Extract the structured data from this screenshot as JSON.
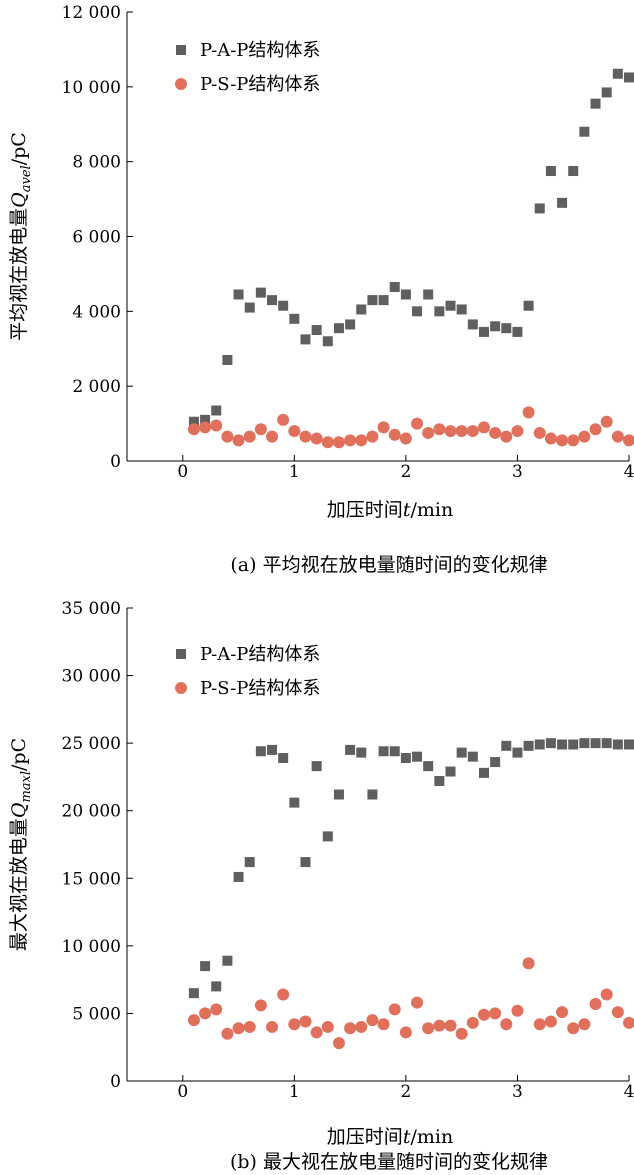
{
  "chart_data": [
    {
      "type": "scatter",
      "title": "(a) 平均视在放电量随时间的变化规律",
      "xlabel_prefix": "加压时间",
      "xlabel_var": "t",
      "xlabel_suffix": "/min",
      "ylabel_prefix": "平均视在放电量",
      "ylabel_var": "Q",
      "ylabel_sub": "avel",
      "ylabel_suffix": "/pC",
      "xlim": [
        -0.5,
        4
      ],
      "ylim": [
        0,
        12000
      ],
      "xticks": [
        0,
        1,
        2,
        3,
        4
      ],
      "xtick_labels": [
        "0",
        "1",
        "2",
        "3",
        "4"
      ],
      "yticks": [
        0,
        2000,
        4000,
        6000,
        8000,
        10000,
        12000
      ],
      "ytick_labels": [
        "0",
        "2 000",
        "4 000",
        "6 000",
        "8 000",
        "10 000",
        "12 000"
      ],
      "legend_position": "top-left",
      "series": [
        {
          "name": "P-A-P结构体系",
          "marker": "square",
          "color": "#5f5f5f",
          "x": [
            0.1,
            0.2,
            0.3,
            0.4,
            0.5,
            0.6,
            0.7,
            0.8,
            0.9,
            1.0,
            1.1,
            1.2,
            1.3,
            1.4,
            1.5,
            1.6,
            1.7,
            1.8,
            1.9,
            2.0,
            2.1,
            2.2,
            2.3,
            2.4,
            2.5,
            2.6,
            2.7,
            2.8,
            2.9,
            3.0,
            3.1,
            3.2,
            3.3,
            3.4,
            3.5,
            3.6,
            3.7,
            3.8,
            3.9,
            4.0
          ],
          "y": [
            1050,
            1100,
            1350,
            2700,
            4450,
            4100,
            4500,
            4300,
            4150,
            3800,
            3250,
            3500,
            3200,
            3550,
            3650,
            4050,
            4300,
            4300,
            4650,
            4450,
            4000,
            4450,
            4000,
            4150,
            4050,
            3650,
            3450,
            3600,
            3550,
            3450,
            4150,
            6750,
            7750,
            6900,
            7750,
            8800,
            9550,
            9850,
            10350,
            10250
          ]
        },
        {
          "name": "P-S-P结构体系",
          "marker": "circle",
          "color": "#e0705c",
          "x": [
            0.1,
            0.2,
            0.3,
            0.4,
            0.5,
            0.6,
            0.7,
            0.8,
            0.9,
            1.0,
            1.1,
            1.2,
            1.3,
            1.4,
            1.5,
            1.6,
            1.7,
            1.8,
            1.9,
            2.0,
            2.1,
            2.2,
            2.3,
            2.4,
            2.5,
            2.6,
            2.7,
            2.8,
            2.9,
            3.0,
            3.1,
            3.2,
            3.3,
            3.4,
            3.5,
            3.6,
            3.7,
            3.8,
            3.9,
            4.0
          ],
          "y": [
            850,
            900,
            950,
            650,
            550,
            650,
            850,
            650,
            1100,
            800,
            650,
            600,
            500,
            500,
            550,
            550,
            650,
            900,
            700,
            600,
            1000,
            750,
            850,
            800,
            800,
            800,
            900,
            750,
            650,
            800,
            1300,
            750,
            600,
            550,
            550,
            650,
            850,
            1050,
            650,
            550
          ]
        }
      ]
    },
    {
      "type": "scatter",
      "title": "(b) 最大视在放电量随时间的变化规律",
      "xlabel_prefix": "加压时间",
      "xlabel_var": "t",
      "xlabel_suffix": "/min",
      "ylabel_prefix": "最大视在放电量",
      "ylabel_var": "Q",
      "ylabel_sub": "maxl",
      "ylabel_suffix": "/pC",
      "xlim": [
        -0.5,
        4
      ],
      "ylim": [
        0,
        35000
      ],
      "xticks": [
        0,
        1,
        2,
        3,
        4
      ],
      "xtick_labels": [
        "0",
        "1",
        "2",
        "3",
        "4"
      ],
      "yticks": [
        0,
        5000,
        10000,
        15000,
        20000,
        25000,
        30000,
        35000
      ],
      "ytick_labels": [
        "0",
        "5 000",
        "10 000",
        "15 000",
        "20 000",
        "25 000",
        "30 000",
        "35 000"
      ],
      "legend_position": "top-left",
      "series": [
        {
          "name": "P-A-P结构体系",
          "marker": "square",
          "color": "#5f5f5f",
          "x": [
            0.1,
            0.2,
            0.3,
            0.4,
            0.5,
            0.6,
            0.7,
            0.8,
            0.9,
            1.0,
            1.1,
            1.2,
            1.3,
            1.4,
            1.5,
            1.6,
            1.7,
            1.8,
            1.9,
            2.0,
            2.1,
            2.2,
            2.3,
            2.4,
            2.5,
            2.6,
            2.7,
            2.8,
            2.9,
            3.0,
            3.1,
            3.2,
            3.3,
            3.4,
            3.5,
            3.6,
            3.7,
            3.8,
            3.9,
            4.0
          ],
          "y": [
            6500,
            8500,
            7000,
            8900,
            15100,
            16200,
            24400,
            24500,
            23900,
            20600,
            16200,
            23300,
            18100,
            21200,
            24500,
            24300,
            21200,
            24400,
            24400,
            23900,
            24000,
            23300,
            22200,
            22900,
            24300,
            24000,
            22800,
            23600,
            24800,
            24300,
            24800,
            24900,
            25000,
            24900,
            24900,
            25000,
            25000,
            25000,
            24900,
            24900
          ]
        },
        {
          "name": "P-S-P结构体系",
          "marker": "circle",
          "color": "#e0705c",
          "x": [
            0.1,
            0.2,
            0.3,
            0.4,
            0.5,
            0.6,
            0.7,
            0.8,
            0.9,
            1.0,
            1.1,
            1.2,
            1.3,
            1.4,
            1.5,
            1.6,
            1.7,
            1.8,
            1.9,
            2.0,
            2.1,
            2.2,
            2.3,
            2.4,
            2.5,
            2.6,
            2.7,
            2.8,
            2.9,
            3.0,
            3.1,
            3.2,
            3.3,
            3.4,
            3.5,
            3.6,
            3.7,
            3.8,
            3.9,
            4.0
          ],
          "y": [
            4500,
            5000,
            5300,
            3500,
            3900,
            4000,
            5600,
            4000,
            6400,
            4200,
            4400,
            3600,
            4000,
            2800,
            3900,
            4000,
            4500,
            4200,
            5300,
            3600,
            5800,
            3900,
            4100,
            4100,
            3500,
            4300,
            4900,
            5000,
            4200,
            5200,
            8700,
            4200,
            4400,
            5100,
            3900,
            4200,
            5700,
            6400,
            5100,
            4300
          ]
        }
      ]
    }
  ]
}
